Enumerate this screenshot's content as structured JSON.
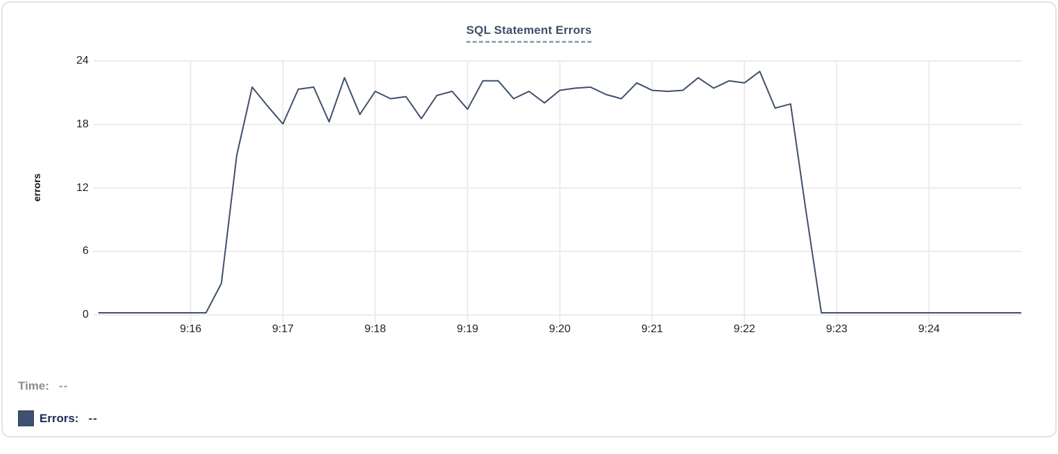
{
  "title": "SQL Statement Errors",
  "tooltip_readout": {
    "time_label": "Time:",
    "time_value": "--",
    "errors_label": "Errors:",
    "errors_value": "--"
  },
  "colors": {
    "line": "#3f4e6b",
    "title": "#3e4f6b",
    "title_underline": "#9aa5ba",
    "grid": "#ebebeb",
    "axis_text": "#1f1f1f",
    "time_text": "#8b8c90",
    "errors_text": "#1b2a52",
    "swatch": "#3f5170",
    "card_border": "#e3e3e3"
  },
  "chart_data": {
    "type": "line",
    "title": "SQL Statement Errors",
    "xlabel": "",
    "ylabel": "errors",
    "ylim": [
      0,
      24
    ],
    "y_ticks": [
      0,
      6,
      12,
      18,
      24
    ],
    "x_ticks": [
      "9:16",
      "9:17",
      "9:18",
      "9:19",
      "9:20",
      "9:21",
      "9:22",
      "9:23",
      "9:24"
    ],
    "x_start": "9:15:00",
    "x_end": "9:25:00",
    "sample_interval_seconds": 10,
    "grid": true,
    "legend_position": "bottom-left",
    "series": [
      {
        "name": "Errors",
        "values": [
          0,
          0,
          0,
          0,
          0,
          0,
          0,
          0,
          2.8,
          15,
          21.5,
          19.7,
          18,
          21.3,
          21.5,
          18.2,
          22.4,
          18.9,
          21.1,
          20.4,
          20.6,
          18.5,
          20.7,
          21.1,
          19.4,
          22.1,
          22.1,
          20.4,
          21.1,
          20,
          21.2,
          21.4,
          21.5,
          20.8,
          20.4,
          21.9,
          21.2,
          21.1,
          21.2,
          22.4,
          21.4,
          22.1,
          21.9,
          23,
          19.5,
          19.9,
          9.7,
          0,
          0,
          0,
          0,
          0,
          0,
          0,
          0,
          0,
          0,
          0,
          0,
          0,
          0
        ]
      }
    ]
  }
}
